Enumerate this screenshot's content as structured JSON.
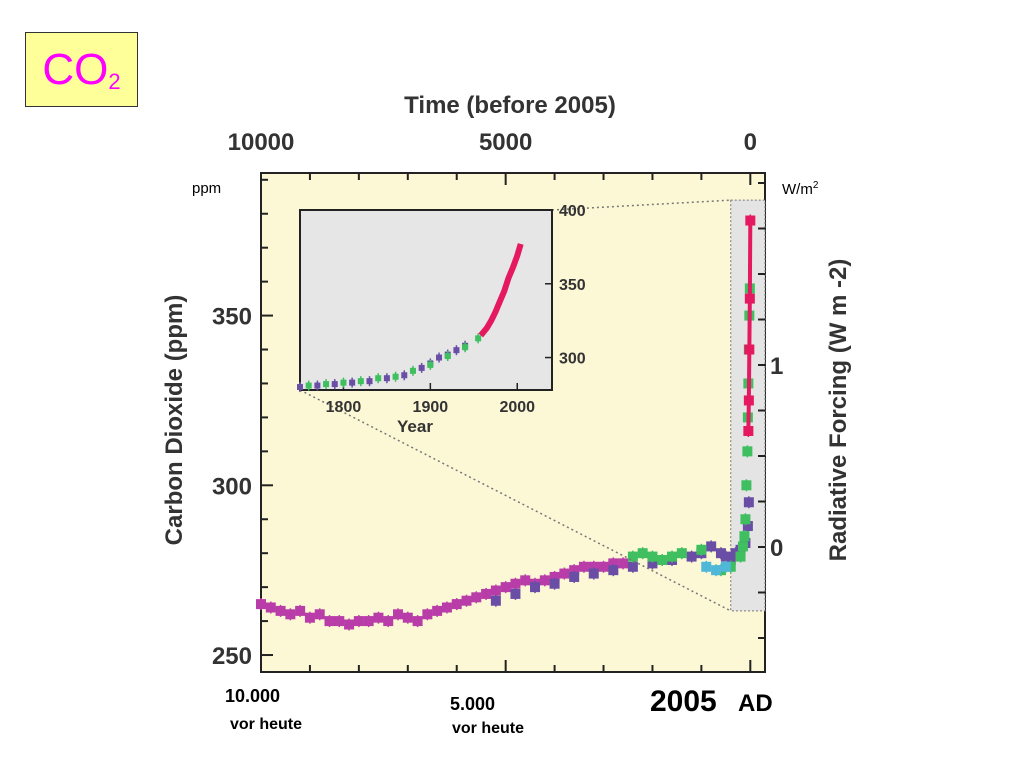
{
  "badge": {
    "main": "CO",
    "sub": "2"
  },
  "units": {
    "left": "ppm",
    "right_base": "W/m",
    "right_sup": "2"
  },
  "bottom_labels": {
    "left": "10.000",
    "left_sub": "vor heute",
    "mid": "5.000",
    "mid_sub": "vor heute",
    "right_year": "2005",
    "right_ad": "AD"
  },
  "colors": {
    "background": "#fcf8d6",
    "inset_bg": "#e6e6e6",
    "highlight": "#e4e4e4",
    "magenta": "#b83da8",
    "purple": "#6a4ea6",
    "green": "#3fbf5f",
    "red": "#e4195f",
    "cyan": "#4fb8d8"
  },
  "chart_data": [
    {
      "type": "scatter",
      "title": "",
      "top_xlabel": "Time (before 2005)",
      "top_ticks": [
        "10000",
        "5000",
        "0"
      ],
      "xlim": [
        10000,
        -300
      ],
      "ylabel": "Carbon Dioxide (ppm)",
      "yticks": [
        "350",
        "300",
        "250"
      ],
      "ylim": [
        245,
        392
      ],
      "right_ylabel": "Radiative Forcing (W m -2)",
      "right_ticks": [
        "1",
        "0"
      ],
      "grid": false,
      "series": [
        {
          "color": "magenta",
          "points": [
            [
              10000,
              265
            ],
            [
              9800,
              264
            ],
            [
              9600,
              263
            ],
            [
              9400,
              262
            ],
            [
              9200,
              263
            ],
            [
              9000,
              261
            ],
            [
              8800,
              262
            ],
            [
              8600,
              260
            ],
            [
              8400,
              260
            ],
            [
              8200,
              259
            ],
            [
              8000,
              260
            ],
            [
              7800,
              260
            ],
            [
              7600,
              261
            ],
            [
              7400,
              260
            ],
            [
              7200,
              262
            ],
            [
              7000,
              261
            ],
            [
              6800,
              260
            ],
            [
              6600,
              262
            ],
            [
              6400,
              263
            ],
            [
              6200,
              264
            ],
            [
              6000,
              265
            ],
            [
              5800,
              266
            ],
            [
              5600,
              267
            ],
            [
              5400,
              268
            ],
            [
              5200,
              269
            ],
            [
              5000,
              270
            ],
            [
              4800,
              271
            ],
            [
              4600,
              272
            ],
            [
              4400,
              271
            ],
            [
              4200,
              272
            ],
            [
              4000,
              273
            ],
            [
              3800,
              274
            ],
            [
              3600,
              275
            ],
            [
              3400,
              276
            ],
            [
              3200,
              276
            ],
            [
              3000,
              276
            ],
            [
              2800,
              277
            ],
            [
              2600,
              277
            ]
          ]
        },
        {
          "color": "purple",
          "points": [
            [
              5200,
              266
            ],
            [
              4800,
              268
            ],
            [
              4400,
              270
            ],
            [
              4000,
              271
            ],
            [
              3600,
              273
            ],
            [
              3200,
              274
            ],
            [
              2800,
              275
            ],
            [
              2400,
              276
            ],
            [
              2000,
              277
            ],
            [
              1600,
              278
            ],
            [
              1200,
              279
            ],
            [
              1000,
              280
            ],
            [
              800,
              282
            ],
            [
              600,
              280
            ],
            [
              500,
              279
            ],
            [
              400,
              278
            ],
            [
              300,
              280
            ],
            [
              200,
              281
            ],
            [
              100,
              283
            ],
            [
              50,
              288
            ],
            [
              30,
              295
            ]
          ]
        },
        {
          "color": "green",
          "points": [
            [
              2400,
              279
            ],
            [
              2200,
              280
            ],
            [
              2000,
              279
            ],
            [
              1800,
              278
            ],
            [
              1600,
              279
            ],
            [
              1400,
              280
            ],
            [
              1000,
              281
            ],
            [
              600,
              275
            ],
            [
              400,
              276
            ],
            [
              200,
              279
            ],
            [
              150,
              282
            ],
            [
              120,
              285
            ],
            [
              100,
              290
            ],
            [
              80,
              300
            ],
            [
              60,
              310
            ],
            [
              50,
              320
            ],
            [
              40,
              330
            ],
            [
              30,
              340
            ],
            [
              20,
              350
            ],
            [
              10,
              358
            ]
          ]
        },
        {
          "color": "cyan",
          "points": [
            [
              900,
              276
            ],
            [
              700,
              275
            ],
            [
              500,
              276
            ]
          ]
        },
        {
          "color": "red",
          "points": [
            [
              40,
              316
            ],
            [
              30,
              325
            ],
            [
              20,
              340
            ],
            [
              10,
              355
            ],
            [
              0,
              378
            ]
          ]
        }
      ],
      "highlight_region_x": [
        400,
        -300
      ]
    },
    {
      "type": "scatter",
      "inset": true,
      "xlabel": "Year",
      "xticks": [
        "1800",
        "1900",
        "2000"
      ],
      "yticks": [
        "400",
        "350",
        "300"
      ],
      "xlim": [
        1750,
        2040
      ],
      "ylim": [
        278,
        400
      ],
      "series": [
        {
          "color": "purple",
          "points": [
            [
              1750,
              280
            ],
            [
              1770,
              281
            ],
            [
              1790,
              282
            ],
            [
              1810,
              283
            ],
            [
              1830,
              284
            ],
            [
              1850,
              286
            ],
            [
              1870,
              288
            ],
            [
              1890,
              293
            ],
            [
              1900,
              296
            ],
            [
              1910,
              300
            ],
            [
              1920,
              302
            ],
            [
              1930,
              305
            ],
            [
              1940,
              308
            ]
          ]
        },
        {
          "color": "green",
          "points": [
            [
              1760,
              281
            ],
            [
              1780,
              282
            ],
            [
              1800,
              283
            ],
            [
              1820,
              284
            ],
            [
              1840,
              286
            ],
            [
              1860,
              287
            ],
            [
              1880,
              291
            ],
            [
              1900,
              295
            ],
            [
              1920,
              301
            ],
            [
              1940,
              307
            ],
            [
              1955,
              313
            ]
          ]
        },
        {
          "color": "red",
          "points": [
            [
              1958,
              315
            ],
            [
              1965,
              320
            ],
            [
              1970,
              325
            ],
            [
              1975,
              331
            ],
            [
              1980,
              338
            ],
            [
              1985,
              345
            ],
            [
              1990,
              354
            ],
            [
              1995,
              361
            ],
            [
              2000,
              369
            ],
            [
              2004,
              377
            ]
          ]
        }
      ]
    }
  ]
}
